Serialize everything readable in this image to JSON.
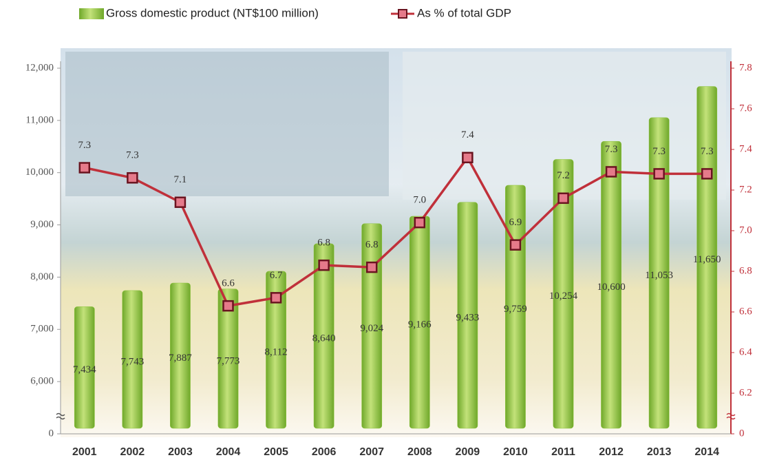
{
  "chart_data": {
    "type": "bar_line",
    "categories": [
      "2001",
      "2002",
      "2003",
      "2004",
      "2005",
      "2006",
      "2007",
      "2008",
      "2009",
      "2010",
      "2011",
      "2012",
      "2013",
      "2014"
    ],
    "series": [
      {
        "name": "Gross domestic product (NT$100 million)",
        "type": "bar",
        "color": "#8cc43c",
        "values": [
          7434,
          7743,
          7887,
          7773,
          8112,
          8640,
          9024,
          9166,
          9433,
          9759,
          10254,
          10600,
          11053,
          11650
        ],
        "value_labels": [
          "7,434",
          "7,743",
          "7,887",
          "7,773",
          "8,112",
          "8,640",
          "9,024",
          "9,166",
          "9,433",
          "9,759",
          "10,254",
          "10,600",
          "11,053",
          "11,650"
        ]
      },
      {
        "name": "As % of total GDP",
        "type": "line",
        "axis": "y2",
        "color": "#c0303a",
        "values": [
          7.31,
          7.26,
          7.14,
          6.63,
          6.67,
          6.83,
          6.82,
          7.04,
          7.36,
          6.93,
          7.16,
          7.29,
          7.28,
          7.28
        ],
        "value_labels": [
          "7.3",
          "7.3",
          "7.1",
          "6.6",
          "6.7",
          "6.8",
          "6.8",
          "7.0",
          "7.4",
          "6.9",
          "7.2",
          "7.3",
          "7.3",
          "7.3"
        ]
      }
    ],
    "ylim": [
      5000,
      12000
    ],
    "yticks": [
      0,
      {
        "value": 6000,
        "label": "6,000"
      },
      {
        "value": 7000,
        "label": "7,000"
      },
      {
        "value": 8000,
        "label": "8,000"
      },
      {
        "value": 9000,
        "label": "9,000"
      },
      {
        "value": 10000,
        "label": "10,000"
      },
      {
        "value": 11000,
        "label": "11,000"
      },
      {
        "value": 12000,
        "label": "12,000"
      }
    ],
    "y2lim": [
      6.0,
      7.8
    ],
    "y2ticks": [
      0,
      6.2,
      6.4,
      6.6,
      6.8,
      {
        "value": 7,
        "label": "7.0"
      },
      7.2,
      7.4,
      7.6,
      7.8
    ],
    "axis_break": true,
    "legend": "top"
  }
}
